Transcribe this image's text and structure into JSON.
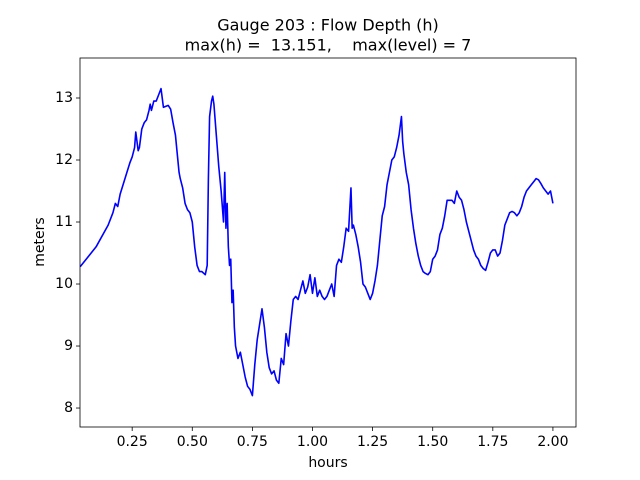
{
  "chart_data": {
    "type": "line",
    "title": "Gauge 203 : Flow Depth (h)",
    "subtitle": "max(h) =  13.151,    max(level) = 7",
    "x_label": "hours",
    "y_label": "meters",
    "xlim": [
      0.033,
      2.096
    ],
    "ylim": [
      7.694,
      13.645
    ],
    "xticks": [
      0.25,
      {
        "value": 0.5,
        "label": "0.50"
      },
      0.75,
      {
        "value": 1.0,
        "label": "1.00"
      },
      1.25,
      {
        "value": 1.5,
        "label": "1.50"
      },
      1.75,
      {
        "value": 2.0,
        "label": "2.00"
      }
    ],
    "yticks": [
      8,
      9,
      10,
      11,
      12,
      13
    ],
    "grid": false,
    "series": [
      {
        "color": "#0000ff",
        "x": [
          0.034,
          0.1,
          0.15,
          0.17,
          0.18,
          0.19,
          0.2,
          0.22,
          0.24,
          0.25,
          0.26,
          0.265,
          0.27,
          0.275,
          0.28,
          0.29,
          0.3,
          0.31,
          0.32,
          0.325,
          0.33,
          0.34,
          0.35,
          0.36,
          0.37,
          0.375,
          0.38,
          0.4,
          0.41,
          0.42,
          0.43,
          0.44,
          0.445,
          0.45,
          0.46,
          0.47,
          0.48,
          0.49,
          0.5,
          0.51,
          0.52,
          0.53,
          0.54,
          0.554,
          0.562,
          0.567,
          0.572,
          0.58,
          0.585,
          0.59,
          0.6,
          0.61,
          0.62,
          0.63,
          0.635,
          0.64,
          0.645,
          0.65,
          0.655,
          0.66,
          0.665,
          0.67,
          0.675,
          0.68,
          0.69,
          0.7,
          0.71,
          0.72,
          0.73,
          0.74,
          0.75,
          0.76,
          0.77,
          0.78,
          0.79,
          0.8,
          0.81,
          0.82,
          0.83,
          0.84,
          0.85,
          0.86,
          0.87,
          0.88,
          0.89,
          0.9,
          0.91,
          0.92,
          0.93,
          0.94,
          0.95,
          0.96,
          0.97,
          0.98,
          0.99,
          1.0,
          1.01,
          1.02,
          1.03,
          1.04,
          1.05,
          1.06,
          1.07,
          1.08,
          1.09,
          1.1,
          1.11,
          1.12,
          1.13,
          1.14,
          1.15,
          1.16,
          1.165,
          1.17,
          1.18,
          1.19,
          1.2,
          1.21,
          1.22,
          1.23,
          1.24,
          1.25,
          1.26,
          1.27,
          1.28,
          1.29,
          1.3,
          1.31,
          1.32,
          1.33,
          1.34,
          1.35,
          1.36,
          1.37,
          1.375,
          1.38,
          1.39,
          1.4,
          1.41,
          1.42,
          1.43,
          1.44,
          1.45,
          1.46,
          1.47,
          1.48,
          1.49,
          1.5,
          1.51,
          1.52,
          1.53,
          1.54,
          1.55,
          1.56,
          1.57,
          1.58,
          1.59,
          1.6,
          1.61,
          1.62,
          1.63,
          1.64,
          1.65,
          1.66,
          1.67,
          1.68,
          1.69,
          1.7,
          1.71,
          1.72,
          1.73,
          1.74,
          1.75,
          1.76,
          1.77,
          1.78,
          1.79,
          1.8,
          1.81,
          1.82,
          1.83,
          1.84,
          1.85,
          1.86,
          1.87,
          1.88,
          1.89,
          1.9,
          1.91,
          1.92,
          1.93,
          1.94,
          1.95,
          1.96,
          1.97,
          1.98,
          1.99,
          2.0
        ],
        "values": [
          10.28,
          10.6,
          10.95,
          11.15,
          11.3,
          11.25,
          11.45,
          11.7,
          11.95,
          12.05,
          12.2,
          12.45,
          12.3,
          12.15,
          12.2,
          12.5,
          12.6,
          12.65,
          12.8,
          12.9,
          12.8,
          12.95,
          12.95,
          13.05,
          13.151,
          13.0,
          12.85,
          12.88,
          12.82,
          12.6,
          12.4,
          12.0,
          11.8,
          11.7,
          11.55,
          11.3,
          11.2,
          11.15,
          11.0,
          10.6,
          10.3,
          10.2,
          10.2,
          10.15,
          10.3,
          11.7,
          12.7,
          12.95,
          13.03,
          12.9,
          12.4,
          11.9,
          11.5,
          11.0,
          11.8,
          10.9,
          11.3,
          10.6,
          10.3,
          10.4,
          9.7,
          9.9,
          9.3,
          9.0,
          8.8,
          8.9,
          8.7,
          8.5,
          8.35,
          8.3,
          8.2,
          8.7,
          9.1,
          9.35,
          9.6,
          9.3,
          8.9,
          8.65,
          8.55,
          8.6,
          8.45,
          8.4,
          8.8,
          8.7,
          9.2,
          9.0,
          9.4,
          9.75,
          9.8,
          9.75,
          9.9,
          10.05,
          9.85,
          9.95,
          10.15,
          9.85,
          10.1,
          9.8,
          9.9,
          9.8,
          9.75,
          9.8,
          9.9,
          10.0,
          9.8,
          10.3,
          10.4,
          10.35,
          10.6,
          10.9,
          10.85,
          11.55,
          10.9,
          10.95,
          10.8,
          10.6,
          10.35,
          10.0,
          9.95,
          9.85,
          9.75,
          9.85,
          10.05,
          10.3,
          10.7,
          11.1,
          11.25,
          11.6,
          11.8,
          12.0,
          12.05,
          12.2,
          12.4,
          12.7,
          12.3,
          12.1,
          11.8,
          11.6,
          11.2,
          10.9,
          10.65,
          10.45,
          10.3,
          10.2,
          10.17,
          10.15,
          10.2,
          10.4,
          10.45,
          10.55,
          10.8,
          10.9,
          11.1,
          11.35,
          11.35,
          11.35,
          11.3,
          11.5,
          11.4,
          11.35,
          11.2,
          11.0,
          10.85,
          10.7,
          10.55,
          10.45,
          10.4,
          10.3,
          10.25,
          10.22,
          10.35,
          10.5,
          10.55,
          10.55,
          10.45,
          10.5,
          10.7,
          10.95,
          11.05,
          11.15,
          11.17,
          11.15,
          11.1,
          11.15,
          11.25,
          11.4,
          11.5,
          11.55,
          11.6,
          11.65,
          11.7,
          11.68,
          11.62,
          11.55,
          11.5,
          11.45,
          11.5,
          11.3
        ]
      }
    ]
  }
}
